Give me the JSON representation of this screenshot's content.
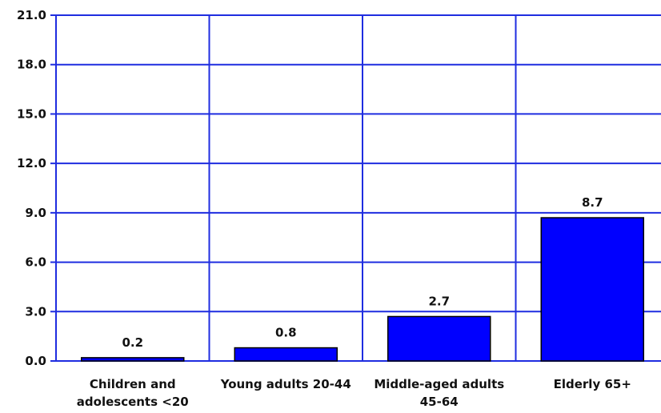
{
  "chart_data": {
    "type": "bar",
    "title": "",
    "xlabel": "",
    "ylabel": "",
    "categories": [
      [
        "Children and",
        "adolescents <20"
      ],
      [
        "Young adults 20-44"
      ],
      [
        "Middle-aged adults",
        "45-64"
      ],
      [
        "Elderly 65+"
      ]
    ],
    "values": [
      0.2,
      0.8,
      2.7,
      8.7
    ],
    "value_labels": [
      "0.2",
      "0.8",
      "2.7",
      "8.7"
    ],
    "ylim": [
      0,
      21
    ],
    "y_ticks": [
      0,
      3,
      6,
      9,
      12,
      15,
      18,
      21
    ],
    "y_tick_labels": [
      "0.0",
      "3.0",
      "6.0",
      "9.0",
      "12.0",
      "15.0",
      "18.0",
      "21.0"
    ],
    "grid": true,
    "legend": "none",
    "colors": {
      "bar_fill": "#0000ff",
      "bar_stroke": "#000000",
      "grid": "#1f2de0",
      "axis": "#1f2de0"
    }
  }
}
